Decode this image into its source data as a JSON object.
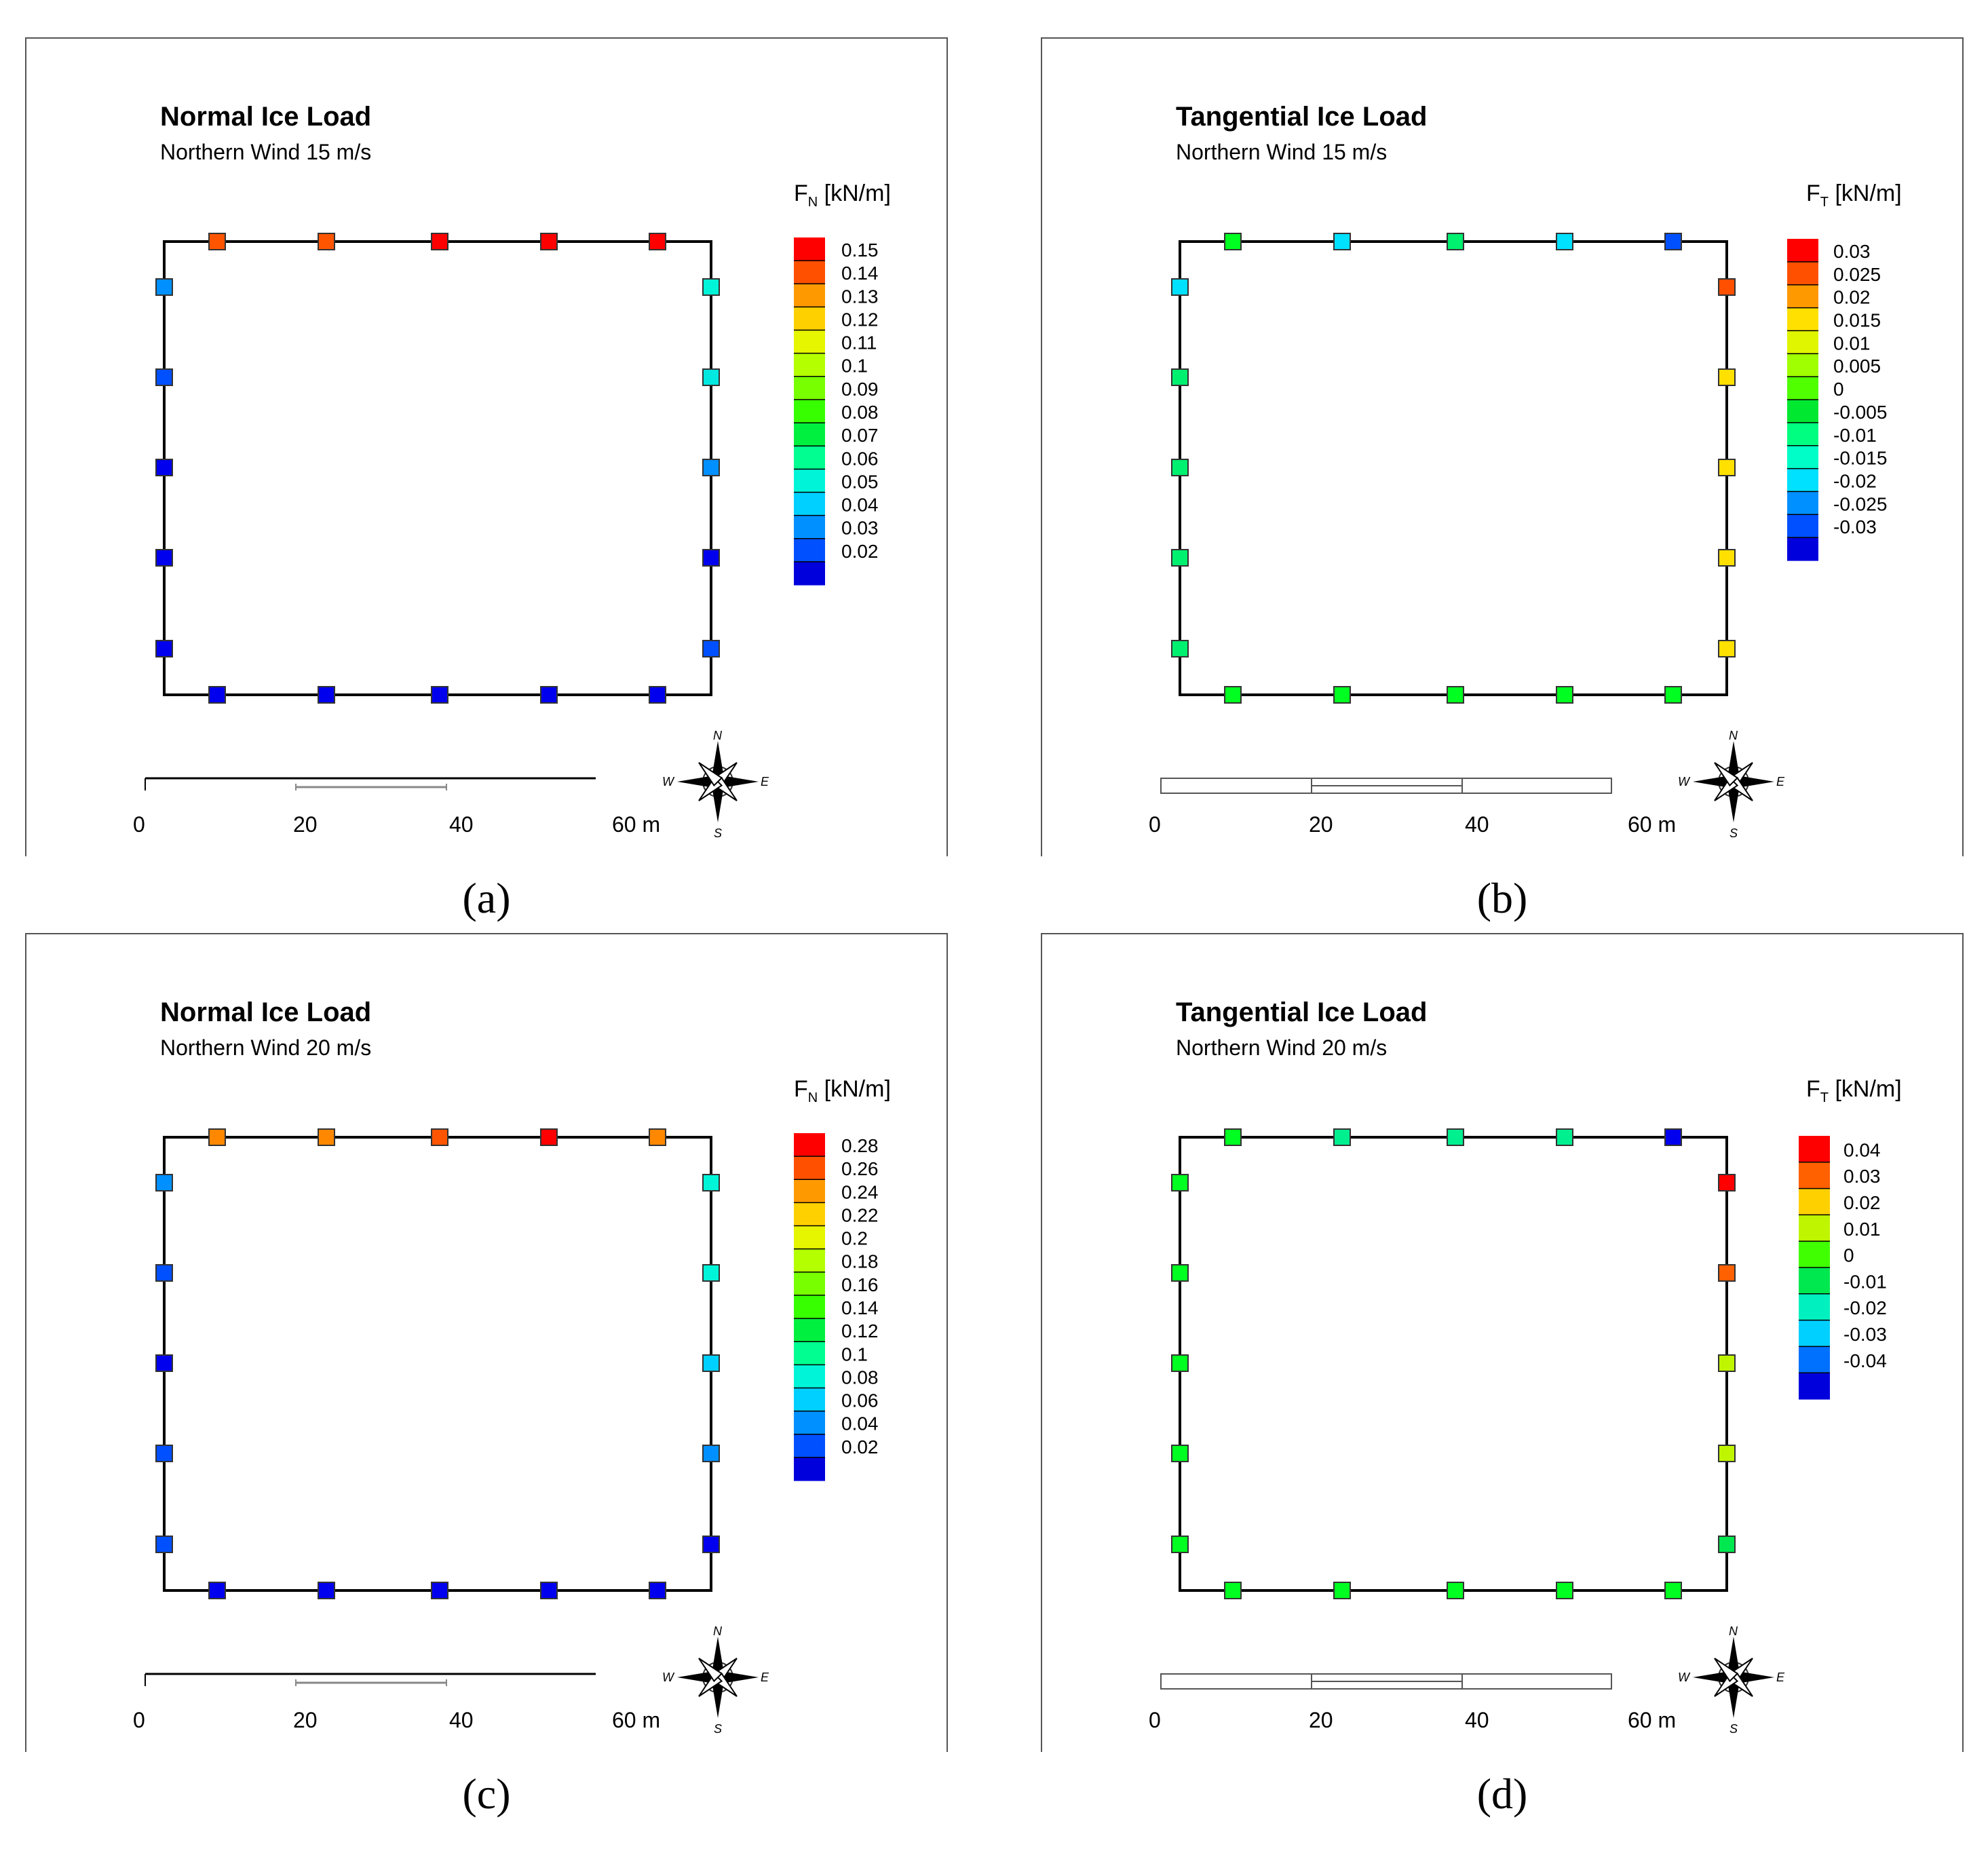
{
  "figure": {
    "panels": [
      {
        "caption": "(a)",
        "title": "Normal Ice Load",
        "subtitle": "Northern Wind 15 m/s",
        "legend_var": "F",
        "legend_sub": "N",
        "legend_unit": " [kN/m]",
        "scalebar": {
          "style": "line",
          "labels": [
            "0",
            "20",
            "40",
            "60 m"
          ]
        },
        "compass": {
          "n": "N",
          "s": "S",
          "e": "E",
          "w": "W"
        }
      },
      {
        "caption": "(b)",
        "title": "Tangential Ice Load",
        "subtitle": "Northern Wind 15 m/s",
        "legend_var": "F",
        "legend_sub": "T",
        "legend_unit": " [kN/m]",
        "scalebar": {
          "style": "bar",
          "labels": [
            "0",
            "20",
            "40",
            "60 m"
          ]
        },
        "compass": {
          "n": "N",
          "s": "S",
          "e": "E",
          "w": "W"
        }
      },
      {
        "caption": "(c)",
        "title": "Normal Ice Load",
        "subtitle": "Northern Wind 20 m/s",
        "legend_var": "F",
        "legend_sub": "N",
        "legend_unit": " [kN/m]",
        "scalebar": {
          "style": "line",
          "labels": [
            "0",
            "20",
            "40",
            "60 m"
          ]
        },
        "compass": {
          "n": "N",
          "s": "S",
          "e": "E",
          "w": "W"
        }
      },
      {
        "caption": "(d)",
        "title": "Tangential Ice Load",
        "subtitle": "Northern Wind 20 m/s",
        "legend_var": "F",
        "legend_sub": "T",
        "legend_unit": " [kN/m]",
        "scalebar": {
          "style": "bar",
          "labels": [
            "0",
            "20",
            "40",
            "60 m"
          ]
        },
        "compass": {
          "n": "N",
          "s": "S",
          "e": "E",
          "w": "W"
        }
      }
    ]
  },
  "chart_data": [
    {
      "type": "heatmap",
      "title": "Normal Ice Load",
      "subtitle": "Northern Wind 15 m/s",
      "legend": {
        "labels": [
          "0.15",
          "0.14",
          "0.13",
          "0.12",
          "0.11",
          "0.1",
          "0.09",
          "0.08",
          "0.07",
          "0.06",
          "0.05",
          "0.04",
          "0.03",
          "0.02"
        ],
        "colors": [
          "#ff0000",
          "#ff5000",
          "#ff9900",
          "#ffd000",
          "#e6f500",
          "#b4ff00",
          "#78ff00",
          "#38ff00",
          "#00f040",
          "#00ff90",
          "#00f5d8",
          "#00d0ff",
          "#0090ff",
          "#0050ff",
          "#0000dd"
        ]
      },
      "points": {
        "north": [
          "#ff5500",
          "#ff5500",
          "#ff0000",
          "#ff0000",
          "#ff0000"
        ],
        "south": [
          "#0000ee",
          "#0000ee",
          "#0000ee",
          "#0000ee",
          "#0000ee"
        ],
        "west": [
          "#0090ff",
          "#0050ff",
          "#0000ee",
          "#0000ee",
          "#0000ee"
        ],
        "east": [
          "#00f5d8",
          "#00e8e0",
          "#0090ff",
          "#0000ee",
          "#0050ff"
        ]
      }
    },
    {
      "type": "heatmap",
      "title": "Tangential Ice Load",
      "subtitle": "Northern Wind 15 m/s",
      "legend": {
        "labels": [
          "0.03",
          "0.025",
          "0.02",
          "0.015",
          "0.01",
          "0.005",
          "0",
          "-0.005",
          "-0.01",
          "-0.015",
          "-0.02",
          "-0.025",
          "-0.03"
        ],
        "colors": [
          "#ff0000",
          "#ff5000",
          "#ff9900",
          "#ffe000",
          "#e0f500",
          "#a0ff00",
          "#50ff00",
          "#00e830",
          "#00ff80",
          "#00ffc8",
          "#00e0ff",
          "#0090ff",
          "#0050ff",
          "#0000dd"
        ]
      },
      "points": {
        "north": [
          "#00ff20",
          "#00e0ff",
          "#00f070",
          "#00e0ff",
          "#0050ff"
        ],
        "south": [
          "#00ff20",
          "#00ff20",
          "#00ff20",
          "#00ff20",
          "#00ff20"
        ],
        "west": [
          "#00e0ff",
          "#00f070",
          "#00f070",
          "#00f070",
          "#00f070"
        ],
        "east": [
          "#ff5000",
          "#ffe000",
          "#ffe000",
          "#ffe000",
          "#ffe000"
        ]
      }
    },
    {
      "type": "heatmap",
      "title": "Normal Ice Load",
      "subtitle": "Northern Wind 20 m/s",
      "legend": {
        "labels": [
          "0.28",
          "0.26",
          "0.24",
          "0.22",
          "0.2",
          "0.18",
          "0.16",
          "0.14",
          "0.12",
          "0.1",
          "0.08",
          "0.06",
          "0.04",
          "0.02"
        ],
        "colors": [
          "#ff0000",
          "#ff5000",
          "#ff9900",
          "#ffd000",
          "#e6f500",
          "#b4ff00",
          "#78ff00",
          "#38ff00",
          "#00f040",
          "#00ff90",
          "#00f5d8",
          "#00d0ff",
          "#0090ff",
          "#0050ff",
          "#0000dd"
        ]
      },
      "points": {
        "north": [
          "#ff8800",
          "#ff8800",
          "#ff5500",
          "#ff0000",
          "#ff8800"
        ],
        "south": [
          "#0000ee",
          "#0000ee",
          "#0000ee",
          "#0000ee",
          "#0000ee"
        ],
        "west": [
          "#0090ff",
          "#0050ff",
          "#0000ee",
          "#0050ff",
          "#0050ff"
        ],
        "east": [
          "#00f5d8",
          "#00f5d8",
          "#00d0ff",
          "#0090ff",
          "#0000ee"
        ]
      }
    },
    {
      "type": "heatmap",
      "title": "Tangential Ice Load",
      "subtitle": "Northern Wind 20 m/s",
      "legend": {
        "labels": [
          "0.04",
          "0.03",
          "0.02",
          "0.01",
          "0",
          "-0.01",
          "-0.02",
          "-0.03",
          "-0.04"
        ],
        "colors": [
          "#ff0000",
          "#ff6000",
          "#ffd000",
          "#c0f500",
          "#40ff00",
          "#00e850",
          "#00f0c0",
          "#00d0ff",
          "#0070ff",
          "#0000dd"
        ]
      },
      "points": {
        "north": [
          "#00ff20",
          "#00f090",
          "#00f090",
          "#00f090",
          "#0000ee"
        ],
        "south": [
          "#00ff20",
          "#00ff20",
          "#00ff20",
          "#00ff20",
          "#00ff20"
        ],
        "west": [
          "#00ff20",
          "#00ff20",
          "#00ff20",
          "#00ff20",
          "#00ff20"
        ],
        "east": [
          "#ff0000",
          "#ff6000",
          "#c0f500",
          "#c0f500",
          "#00e850"
        ]
      }
    }
  ]
}
